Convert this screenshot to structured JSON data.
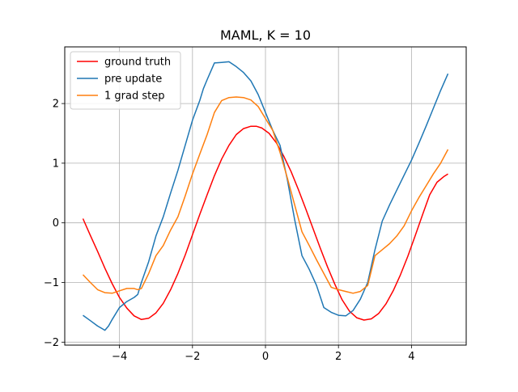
{
  "chart_data": {
    "type": "line",
    "title": "MAML, K = 10",
    "xlabel": "",
    "ylabel": "",
    "xlim": [
      -5.5,
      5.5
    ],
    "ylim": [
      -2.05,
      2.95
    ],
    "xticks": [
      -4,
      -2,
      0,
      2,
      4
    ],
    "yticks": [
      -2,
      -1,
      0,
      1,
      2
    ],
    "xtick_labels": [
      "−4",
      "−2",
      "0",
      "2",
      "4"
    ],
    "ytick_labels": [
      "−2",
      "−1",
      "0",
      "1",
      "2"
    ],
    "grid": true,
    "legend_position": "top-left",
    "series": [
      {
        "name": "ground truth",
        "color": "#ff0000",
        "x": [
          -5.0,
          -4.8,
          -4.6,
          -4.4,
          -4.2,
          -4.0,
          -3.8,
          -3.6,
          -3.4,
          -3.2,
          -3.0,
          -2.8,
          -2.6,
          -2.4,
          -2.2,
          -2.0,
          -1.8,
          -1.6,
          -1.4,
          -1.2,
          -1.0,
          -0.8,
          -0.6,
          -0.4,
          -0.25,
          -0.1,
          0.1,
          0.3,
          0.5,
          0.7,
          0.9,
          1.1,
          1.3,
          1.5,
          1.7,
          1.9,
          2.1,
          2.3,
          2.5,
          2.7,
          2.9,
          3.1,
          3.3,
          3.5,
          3.7,
          3.9,
          4.1,
          4.3,
          4.5,
          4.7,
          4.9,
          5.0
        ],
        "y": [
          0.07,
          -0.21,
          -0.48,
          -0.76,
          -1.02,
          -1.25,
          -1.43,
          -1.56,
          -1.62,
          -1.6,
          -1.51,
          -1.35,
          -1.12,
          -0.85,
          -0.54,
          -0.2,
          0.14,
          0.47,
          0.79,
          1.07,
          1.3,
          1.48,
          1.58,
          1.62,
          1.62,
          1.59,
          1.5,
          1.34,
          1.12,
          0.86,
          0.56,
          0.24,
          -0.09,
          -0.42,
          -0.74,
          -1.03,
          -1.29,
          -1.48,
          -1.59,
          -1.63,
          -1.61,
          -1.52,
          -1.36,
          -1.14,
          -0.87,
          -0.56,
          -0.22,
          0.13,
          0.47,
          0.68,
          0.78,
          0.82
        ]
      },
      {
        "name": "pre update",
        "color": "#1f77b4",
        "x": [
          -5.0,
          -4.8,
          -4.6,
          -4.4,
          -4.3,
          -4.2,
          -4.0,
          -3.8,
          -3.6,
          -3.5,
          -3.4,
          -3.2,
          -3.0,
          -2.8,
          -2.6,
          -2.4,
          -2.2,
          -2.0,
          -1.8,
          -1.7,
          -1.6,
          -1.4,
          -1.2,
          -1.0,
          -0.8,
          -0.6,
          -0.4,
          -0.2,
          0.0,
          0.2,
          0.4,
          0.6,
          0.8,
          1.0,
          1.2,
          1.4,
          1.6,
          1.8,
          2.0,
          2.2,
          2.4,
          2.6,
          2.8,
          3.0,
          3.2,
          3.4,
          3.6,
          3.8,
          4.0,
          4.2,
          4.4,
          4.6,
          4.8,
          5.0
        ],
        "y": [
          -1.55,
          -1.64,
          -1.73,
          -1.8,
          -1.73,
          -1.62,
          -1.42,
          -1.32,
          -1.25,
          -1.2,
          -1.0,
          -0.65,
          -0.22,
          0.1,
          0.5,
          0.88,
          1.3,
          1.72,
          2.05,
          2.25,
          2.4,
          2.68,
          2.69,
          2.7,
          2.62,
          2.52,
          2.38,
          2.15,
          1.85,
          1.55,
          1.3,
          0.72,
          0.05,
          -0.55,
          -0.78,
          -1.05,
          -1.42,
          -1.5,
          -1.55,
          -1.56,
          -1.47,
          -1.28,
          -1.0,
          -0.45,
          0.03,
          0.3,
          0.55,
          0.8,
          1.05,
          1.33,
          1.62,
          1.92,
          2.22,
          2.5
        ]
      },
      {
        "name": "1 grad step",
        "color": "#ff7f0e",
        "x": [
          -5.0,
          -4.8,
          -4.6,
          -4.4,
          -4.2,
          -4.0,
          -3.8,
          -3.6,
          -3.5,
          -3.4,
          -3.2,
          -3.0,
          -2.8,
          -2.6,
          -2.4,
          -2.2,
          -2.0,
          -1.8,
          -1.6,
          -1.4,
          -1.2,
          -1.0,
          -0.8,
          -0.6,
          -0.4,
          -0.2,
          0.0,
          0.2,
          0.4,
          0.6,
          0.8,
          1.0,
          1.2,
          1.4,
          1.6,
          1.8,
          2.0,
          2.2,
          2.4,
          2.6,
          2.8,
          3.0,
          3.2,
          3.4,
          3.6,
          3.8,
          4.0,
          4.2,
          4.4,
          4.6,
          4.8,
          5.0
        ],
        "y": [
          -0.87,
          -1.0,
          -1.12,
          -1.17,
          -1.18,
          -1.14,
          -1.1,
          -1.1,
          -1.12,
          -1.1,
          -0.85,
          -0.55,
          -0.38,
          -0.12,
          0.1,
          0.45,
          0.82,
          1.15,
          1.48,
          1.85,
          2.05,
          2.1,
          2.11,
          2.1,
          2.06,
          1.95,
          1.75,
          1.55,
          1.18,
          0.75,
          0.3,
          -0.15,
          -0.38,
          -0.62,
          -0.85,
          -1.08,
          -1.12,
          -1.15,
          -1.18,
          -1.15,
          -1.05,
          -0.55,
          -0.45,
          -0.35,
          -0.22,
          -0.05,
          0.2,
          0.42,
          0.62,
          0.82,
          1.0,
          1.23
        ]
      }
    ]
  }
}
